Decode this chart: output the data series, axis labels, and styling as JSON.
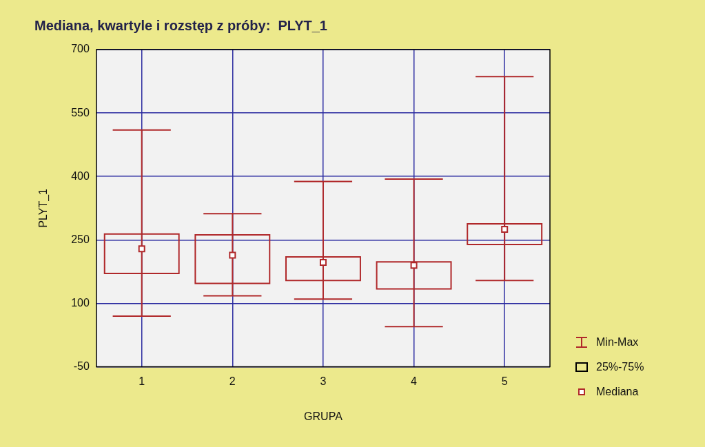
{
  "chart_data": {
    "type": "box",
    "title": "Mediana, kwartyle i rozstęp z próby:  PLYT_1",
    "xlabel": "GRUPA",
    "ylabel": "PLYT_1",
    "categories": [
      "1",
      "2",
      "3",
      "4",
      "5"
    ],
    "series": [
      {
        "color": "#b0282a",
        "boxes": [
          {
            "low": 70,
            "q1": 171,
            "median": 229,
            "q3": 264,
            "high": 510
          },
          {
            "low": 118,
            "q1": 147,
            "median": 214,
            "q3": 262,
            "high": 312
          },
          {
            "low": 110,
            "q1": 154,
            "median": 197,
            "q3": 210,
            "high": 388
          },
          {
            "low": 45,
            "q1": 134,
            "median": 190,
            "q3": 198,
            "high": 394
          },
          {
            "low": 154,
            "q1": 239,
            "median": 275,
            "q3": 288,
            "high": 636
          }
        ]
      }
    ],
    "ylim": [
      -50,
      700
    ],
    "yticks": [
      -50,
      100,
      250,
      400,
      550,
      700
    ],
    "grid": true,
    "annotations": [
      "Min-Max",
      "25%-75%",
      "Mediana"
    ]
  }
}
